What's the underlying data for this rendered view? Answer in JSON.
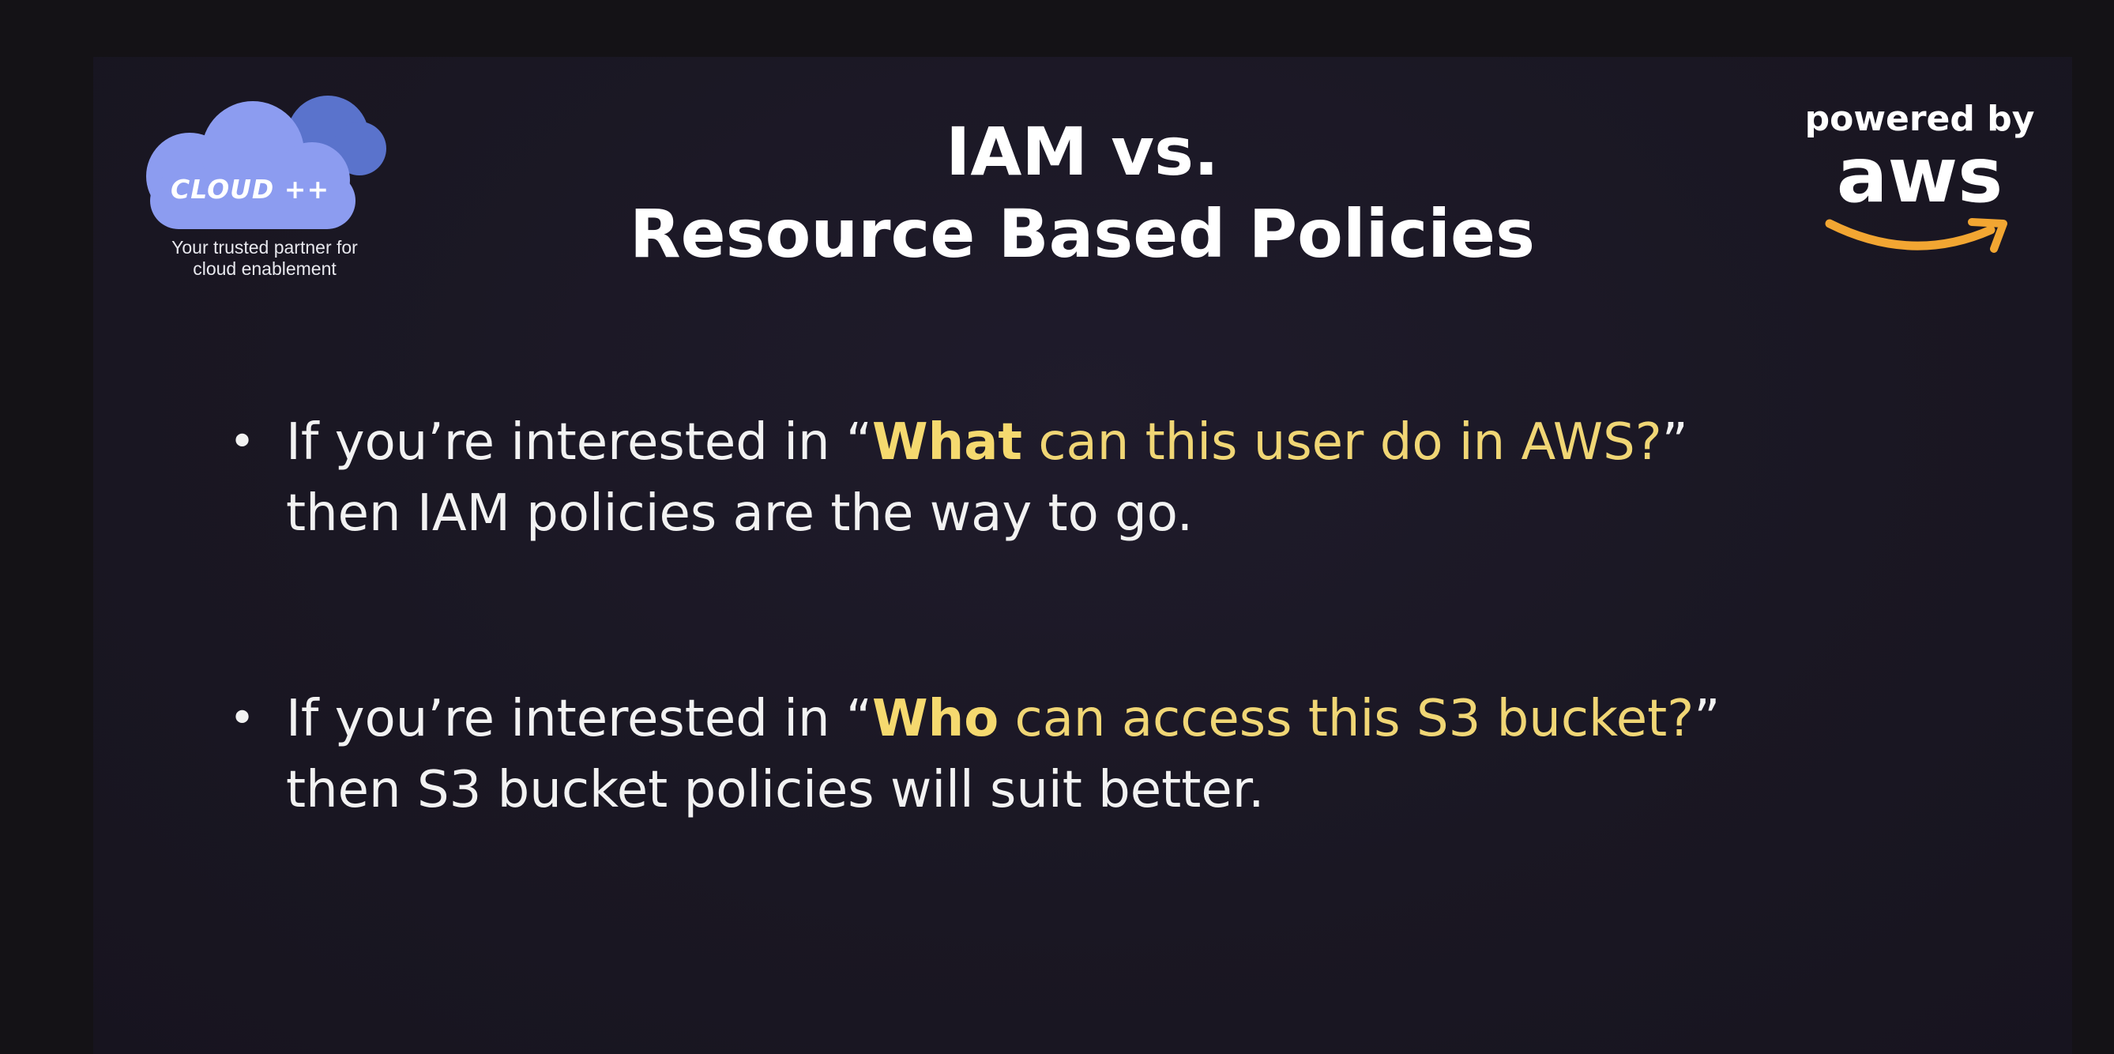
{
  "logo": {
    "brand": "CLOUD ++",
    "tagline_line1": "Your trusted partner for",
    "tagline_line2": "cloud enablement"
  },
  "title": {
    "line1": "IAM vs.",
    "line2": "Resource Based Policies"
  },
  "aws_badge": {
    "powered_by": "powered by",
    "word": "aws",
    "smile_color": "#f2a632"
  },
  "bullets": [
    {
      "prefix": "If you’re interested in “",
      "keyword": "What",
      "question": " can this user do in AWS?",
      "close_quote": "”",
      "continuation": "then IAM policies are the way to go."
    },
    {
      "prefix": "If you’re interested in “",
      "keyword": "Who",
      "question": " can access this S3 bucket?",
      "close_quote": "”",
      "continuation": "then S3 bucket policies will suit better."
    }
  ],
  "colors": {
    "background": "#1a1723",
    "highlight": "#f0d675",
    "cloud_front": "#8c9cf0",
    "cloud_back": "#5a73cc"
  }
}
